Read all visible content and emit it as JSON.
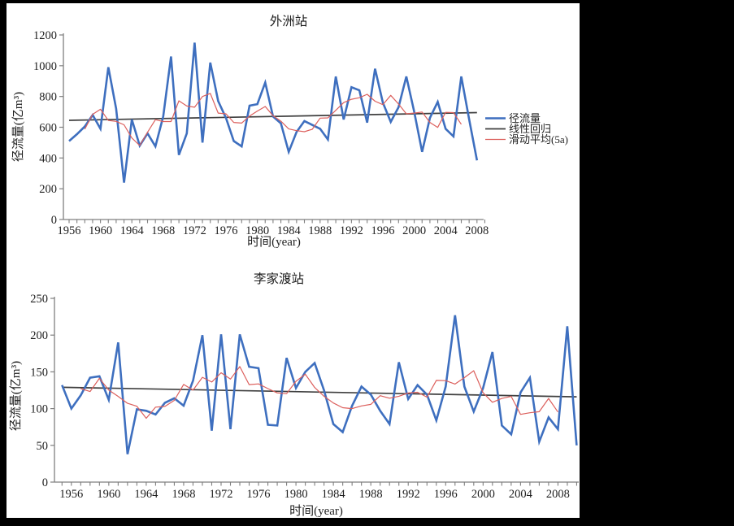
{
  "page": {
    "background": "#000000",
    "canvas_background": "#ffffff"
  },
  "colors": {
    "runoff": "#3e6fbf",
    "regression": "#3f3f3f",
    "moving_average": "#dc5f5c",
    "axis": "#7f7f7f",
    "text": "#1f1f1f"
  },
  "chart_data": [
    {
      "type": "line",
      "title": "外洲站",
      "ylabel": "径流量(亿m³)",
      "xlabel": "时间(year)",
      "ylim": [
        0,
        1200
      ],
      "yticks": [
        0,
        200,
        400,
        600,
        800,
        1000,
        1200
      ],
      "xticks": [
        1956,
        1960,
        1964,
        1968,
        1972,
        1976,
        1980,
        1984,
        1988,
        1992,
        1996,
        2000,
        2004,
        2008
      ],
      "grid": false,
      "legend": [
        "径流量",
        "线性回归",
        "滑动平均(5a)"
      ],
      "legend_position": "right",
      "series": [
        {
          "name": "径流量",
          "kind": "annual",
          "start_year": 1956,
          "values": [
            510,
            555,
            605,
            680,
            590,
            990,
            720,
            240,
            650,
            480,
            560,
            475,
            670,
            1060,
            420,
            560,
            1150,
            500,
            1020,
            770,
            660,
            510,
            475,
            740,
            750,
            890,
            670,
            625,
            440,
            570,
            640,
            615,
            590,
            520,
            930,
            650,
            860,
            840,
            630,
            980,
            760,
            635,
            730,
            930,
            700,
            440,
            660,
            765,
            590,
            540,
            930,
            650,
            385
          ]
        },
        {
          "name": "线性回归",
          "kind": "linear",
          "start_year": 1956,
          "end_year": 2008,
          "start_value": 645,
          "end_value": 695
        },
        {
          "name": "滑动平均(5a)",
          "kind": "moving_average",
          "window": 5
        }
      ]
    },
    {
      "type": "line",
      "title": "李家渡站",
      "ylabel": "径流量(亿m³)",
      "xlabel": "时间(year)",
      "ylim": [
        0,
        250
      ],
      "yticks": [
        0,
        50,
        100,
        150,
        200,
        250
      ],
      "xticks": [
        1956,
        1960,
        1964,
        1968,
        1972,
        1976,
        1980,
        1984,
        1988,
        1992,
        1996,
        2000,
        2004,
        2008
      ],
      "grid": false,
      "legend": [],
      "series": [
        {
          "name": "径流量",
          "kind": "annual",
          "start_year": 1955,
          "values": [
            132,
            100,
            118,
            142,
            144,
            112,
            190,
            38,
            99,
            97,
            92,
            108,
            114,
            104,
            138,
            200,
            70,
            201,
            72,
            201,
            157,
            155,
            78,
            77,
            169,
            128,
            150,
            162,
            125,
            79,
            68,
            104,
            130,
            119,
            97,
            79,
            163,
            113,
            132,
            119,
            84,
            130,
            227,
            130,
            96,
            128,
            177,
            77,
            65,
            122,
            142,
            55,
            88,
            72,
            212,
            50
          ]
        },
        {
          "name": "线性回归",
          "kind": "linear",
          "start_year": 1955,
          "end_year": 2010,
          "start_value": 129,
          "end_value": 116
        },
        {
          "name": "滑动平均(5a)",
          "kind": "moving_average",
          "window": 5
        }
      ]
    }
  ]
}
